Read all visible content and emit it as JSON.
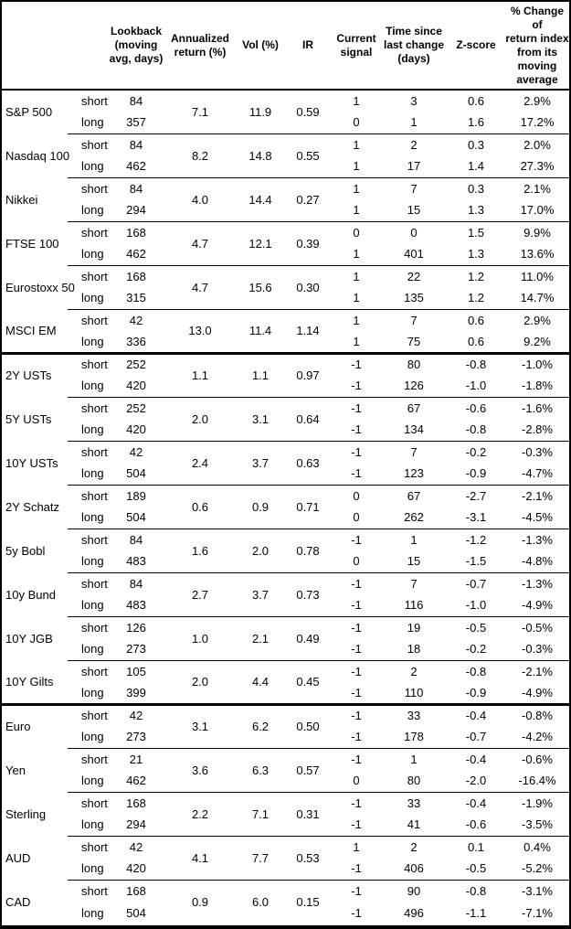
{
  "table": {
    "headers": {
      "asset": "",
      "horizon": "",
      "lookback": "Lookback\n(moving\navg, days)",
      "ann_return": "Annualized\nreturn (%)",
      "vol": "Vol (%)",
      "ir": "IR",
      "signal": "Current\nsignal",
      "time_since": "Time since\nlast change\n(days)",
      "zscore": "Z-score",
      "pct_change": "% Change of\nreturn index\nfrom its\nmoving\naverage"
    },
    "sections": [
      {
        "groups": [
          {
            "name": "S&P 500",
            "ann_return": "7.1",
            "vol": "11.9",
            "ir": "0.59",
            "short": {
              "label": "short",
              "lookback": "84",
              "signal": "1",
              "time_since": "3",
              "zscore": "0.6",
              "pct_change": "2.9%"
            },
            "long": {
              "label": "long",
              "lookback": "357",
              "signal": "0",
              "time_since": "1",
              "zscore": "1.6",
              "pct_change": "17.2%"
            }
          },
          {
            "name": "Nasdaq 100",
            "ann_return": "8.2",
            "vol": "14.8",
            "ir": "0.55",
            "short": {
              "label": "short",
              "lookback": "84",
              "signal": "1",
              "time_since": "2",
              "zscore": "0.3",
              "pct_change": "2.0%"
            },
            "long": {
              "label": "long",
              "lookback": "462",
              "signal": "1",
              "time_since": "17",
              "zscore": "1.4",
              "pct_change": "27.3%"
            }
          },
          {
            "name": "Nikkei",
            "ann_return": "4.0",
            "vol": "14.4",
            "ir": "0.27",
            "short": {
              "label": "short",
              "lookback": "84",
              "signal": "1",
              "time_since": "7",
              "zscore": "0.3",
              "pct_change": "2.1%"
            },
            "long": {
              "label": "long",
              "lookback": "294",
              "signal": "1",
              "time_since": "15",
              "zscore": "1.3",
              "pct_change": "17.0%"
            }
          },
          {
            "name": "FTSE 100",
            "ann_return": "4.7",
            "vol": "12.1",
            "ir": "0.39",
            "short": {
              "label": "short",
              "lookback": "168",
              "signal": "0",
              "time_since": "0",
              "zscore": "1.5",
              "pct_change": "9.9%"
            },
            "long": {
              "label": "long",
              "lookback": "462",
              "signal": "1",
              "time_since": "401",
              "zscore": "1.3",
              "pct_change": "13.6%"
            }
          },
          {
            "name": "Eurostoxx 50",
            "ann_return": "4.7",
            "vol": "15.6",
            "ir": "0.30",
            "short": {
              "label": "short",
              "lookback": "168",
              "signal": "1",
              "time_since": "22",
              "zscore": "1.2",
              "pct_change": "11.0%"
            },
            "long": {
              "label": "long",
              "lookback": "315",
              "signal": "1",
              "time_since": "135",
              "zscore": "1.2",
              "pct_change": "14.7%"
            }
          },
          {
            "name": "MSCI EM",
            "ann_return": "13.0",
            "vol": "11.4",
            "ir": "1.14",
            "short": {
              "label": "short",
              "lookback": "42",
              "signal": "1",
              "time_since": "7",
              "zscore": "0.6",
              "pct_change": "2.9%"
            },
            "long": {
              "label": "long",
              "lookback": "336",
              "signal": "1",
              "time_since": "75",
              "zscore": "0.6",
              "pct_change": "9.2%"
            }
          }
        ]
      },
      {
        "groups": [
          {
            "name": "2Y USTs",
            "ann_return": "1.1",
            "vol": "1.1",
            "ir": "0.97",
            "short": {
              "label": "short",
              "lookback": "252",
              "signal": "-1",
              "time_since": "80",
              "zscore": "-0.8",
              "pct_change": "-1.0%"
            },
            "long": {
              "label": "long",
              "lookback": "420",
              "signal": "-1",
              "time_since": "126",
              "zscore": "-1.0",
              "pct_change": "-1.8%"
            }
          },
          {
            "name": "5Y USTs",
            "ann_return": "2.0",
            "vol": "3.1",
            "ir": "0.64",
            "short": {
              "label": "short",
              "lookback": "252",
              "signal": "-1",
              "time_since": "67",
              "zscore": "-0.6",
              "pct_change": "-1.6%"
            },
            "long": {
              "label": "long",
              "lookback": "420",
              "signal": "-1",
              "time_since": "134",
              "zscore": "-0.8",
              "pct_change": "-2.8%"
            }
          },
          {
            "name": "10Y USTs",
            "ann_return": "2.4",
            "vol": "3.7",
            "ir": "0.63",
            "short": {
              "label": "short",
              "lookback": "42",
              "signal": "-1",
              "time_since": "7",
              "zscore": "-0.2",
              "pct_change": "-0.3%"
            },
            "long": {
              "label": "long",
              "lookback": "504",
              "signal": "-1",
              "time_since": "123",
              "zscore": "-0.9",
              "pct_change": "-4.7%"
            }
          },
          {
            "name": "2Y Schatz",
            "ann_return": "0.6",
            "vol": "0.9",
            "ir": "0.71",
            "short": {
              "label": "short",
              "lookback": "189",
              "signal": "0",
              "time_since": "67",
              "zscore": "-2.7",
              "pct_change": "-2.1%"
            },
            "long": {
              "label": "long",
              "lookback": "504",
              "signal": "0",
              "time_since": "262",
              "zscore": "-3.1",
              "pct_change": "-4.5%"
            }
          },
          {
            "name": "5y Bobl",
            "ann_return": "1.6",
            "vol": "2.0",
            "ir": "0.78",
            "short": {
              "label": "short",
              "lookback": "84",
              "signal": "-1",
              "time_since": "1",
              "zscore": "-1.2",
              "pct_change": "-1.3%"
            },
            "long": {
              "label": "long",
              "lookback": "483",
              "signal": "0",
              "time_since": "15",
              "zscore": "-1.5",
              "pct_change": "-4.8%"
            }
          },
          {
            "name": "10y Bund",
            "ann_return": "2.7",
            "vol": "3.7",
            "ir": "0.73",
            "short": {
              "label": "short",
              "lookback": "84",
              "signal": "-1",
              "time_since": "7",
              "zscore": "-0.7",
              "pct_change": "-1.3%"
            },
            "long": {
              "label": "long",
              "lookback": "483",
              "signal": "-1",
              "time_since": "116",
              "zscore": "-1.0",
              "pct_change": "-4.9%"
            }
          },
          {
            "name": "10Y JGB",
            "ann_return": "1.0",
            "vol": "2.1",
            "ir": "0.49",
            "short": {
              "label": "short",
              "lookback": "126",
              "signal": "-1",
              "time_since": "19",
              "zscore": "-0.5",
              "pct_change": "-0.5%"
            },
            "long": {
              "label": "long",
              "lookback": "273",
              "signal": "-1",
              "time_since": "18",
              "zscore": "-0.2",
              "pct_change": "-0.3%"
            }
          },
          {
            "name": "10Y Gilts",
            "ann_return": "2.0",
            "vol": "4.4",
            "ir": "0.45",
            "short": {
              "label": "short",
              "lookback": "105",
              "signal": "-1",
              "time_since": "2",
              "zscore": "-0.8",
              "pct_change": "-2.1%"
            },
            "long": {
              "label": "long",
              "lookback": "399",
              "signal": "-1",
              "time_since": "110",
              "zscore": "-0.9",
              "pct_change": "-4.9%"
            }
          }
        ]
      },
      {
        "groups": [
          {
            "name": "Euro",
            "ann_return": "3.1",
            "vol": "6.2",
            "ir": "0.50",
            "short": {
              "label": "short",
              "lookback": "42",
              "signal": "-1",
              "time_since": "33",
              "zscore": "-0.4",
              "pct_change": "-0.8%"
            },
            "long": {
              "label": "long",
              "lookback": "273",
              "signal": "-1",
              "time_since": "178",
              "zscore": "-0.7",
              "pct_change": "-4.2%"
            }
          },
          {
            "name": "Yen",
            "ann_return": "3.6",
            "vol": "6.3",
            "ir": "0.57",
            "short": {
              "label": "short",
              "lookback": "21",
              "signal": "-1",
              "time_since": "1",
              "zscore": "-0.4",
              "pct_change": "-0.6%"
            },
            "long": {
              "label": "long",
              "lookback": "462",
              "signal": "0",
              "time_since": "80",
              "zscore": "-2.0",
              "pct_change": "-16.4%"
            }
          },
          {
            "name": "Sterling",
            "ann_return": "2.2",
            "vol": "7.1",
            "ir": "0.31",
            "short": {
              "label": "short",
              "lookback": "168",
              "signal": "-1",
              "time_since": "33",
              "zscore": "-0.4",
              "pct_change": "-1.9%"
            },
            "long": {
              "label": "long",
              "lookback": "294",
              "signal": "-1",
              "time_since": "41",
              "zscore": "-0.6",
              "pct_change": "-3.5%"
            }
          },
          {
            "name": "AUD",
            "ann_return": "4.1",
            "vol": "7.7",
            "ir": "0.53",
            "short": {
              "label": "short",
              "lookback": "42",
              "signal": "1",
              "time_since": "2",
              "zscore": "0.1",
              "pct_change": "0.4%"
            },
            "long": {
              "label": "long",
              "lookback": "420",
              "signal": "-1",
              "time_since": "406",
              "zscore": "-0.5",
              "pct_change": "-5.2%"
            }
          },
          {
            "name": "CAD",
            "ann_return": "0.9",
            "vol": "6.0",
            "ir": "0.15",
            "short": {
              "label": "short",
              "lookback": "168",
              "signal": "-1",
              "time_since": "90",
              "zscore": "-0.8",
              "pct_change": "-3.1%"
            },
            "long": {
              "label": "long",
              "lookback": "504",
              "signal": "-1",
              "time_since": "496",
              "zscore": "-1.1",
              "pct_change": "-7.1%"
            }
          }
        ]
      }
    ]
  },
  "colors": {
    "text": "#000000",
    "border": "#000000",
    "background": "#ffffff"
  }
}
